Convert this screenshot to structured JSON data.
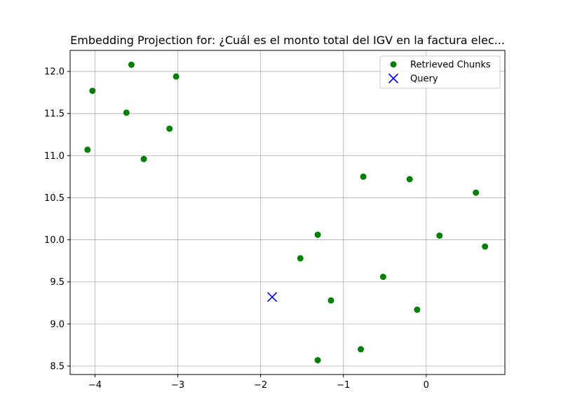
{
  "chart_data": {
    "type": "scatter",
    "title": "Embedding Projection for: ¿Cuál es el monto total del IGV en la factura elec...",
    "xlabel": "",
    "ylabel": "",
    "xlim": [
      -4.3,
      0.95
    ],
    "ylim": [
      8.4,
      12.25
    ],
    "xticks": [
      -4,
      -3,
      -2,
      -1,
      0
    ],
    "xtick_labels": [
      "−4",
      "−3",
      "−2",
      "−1",
      "0"
    ],
    "yticks": [
      8.5,
      9.0,
      9.5,
      10.0,
      10.5,
      11.0,
      11.5,
      12.0
    ],
    "ytick_labels": [
      "8.5",
      "9.0",
      "9.5",
      "10.0",
      "10.5",
      "11.0",
      "11.5",
      "12.0"
    ],
    "grid": true,
    "legend_position": "top-right",
    "series": [
      {
        "name": "Retrieved Chunks",
        "marker": "circle",
        "color": "#008000",
        "points": [
          {
            "x": -3.56,
            "y": 12.08
          },
          {
            "x": -3.02,
            "y": 11.94
          },
          {
            "x": -4.03,
            "y": 11.77
          },
          {
            "x": -3.62,
            "y": 11.51
          },
          {
            "x": -3.1,
            "y": 11.32
          },
          {
            "x": -4.09,
            "y": 11.07
          },
          {
            "x": -3.41,
            "y": 10.96
          },
          {
            "x": -0.76,
            "y": 10.75
          },
          {
            "x": -0.2,
            "y": 10.72
          },
          {
            "x": 0.6,
            "y": 10.56
          },
          {
            "x": -1.31,
            "y": 10.06
          },
          {
            "x": 0.16,
            "y": 10.05
          },
          {
            "x": 0.71,
            "y": 9.92
          },
          {
            "x": -1.52,
            "y": 9.78
          },
          {
            "x": -0.52,
            "y": 9.56
          },
          {
            "x": -1.15,
            "y": 9.28
          },
          {
            "x": -0.11,
            "y": 9.17
          },
          {
            "x": -0.79,
            "y": 8.7
          },
          {
            "x": -1.31,
            "y": 8.57
          }
        ]
      },
      {
        "name": "Query",
        "marker": "x",
        "color": "#0000ff",
        "points": [
          {
            "x": -1.86,
            "y": 9.32
          }
        ]
      }
    ]
  }
}
